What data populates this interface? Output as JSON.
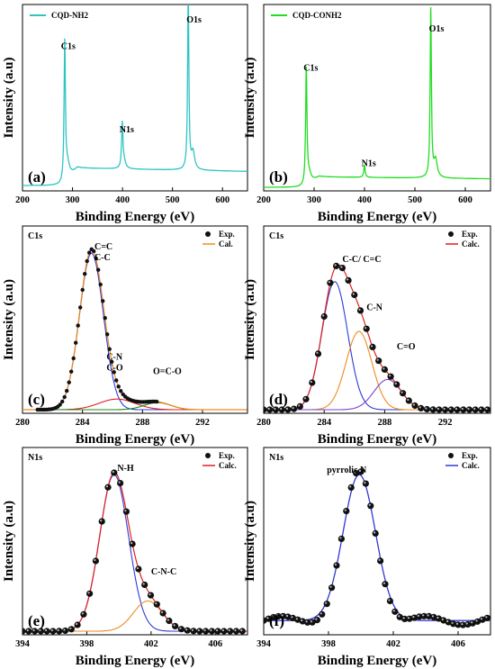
{
  "chart_data": [
    {
      "id": "a",
      "type": "line",
      "panel_label": "(a)",
      "xlabel": "Binding Energy (eV)",
      "ylabel": "Intensity (a.u)",
      "xlim": [
        200,
        650
      ],
      "xticks": [
        200,
        300,
        400,
        500,
        600
      ],
      "legend": [
        {
          "name": "CQD-NH2",
          "color": "#2ec4c4",
          "style": "line"
        }
      ],
      "legend_position": "top-left",
      "series": [
        {
          "name": "CQD-NH2",
          "color": "#2ec4c4",
          "kind": "survey",
          "baseline": 0.03,
          "ramp": 0.1,
          "peaks": [
            [
              284.5,
              0.78,
              1.6
            ],
            [
              290,
              0.08,
              5
            ],
            [
              399.5,
              0.25,
              1.6
            ],
            [
              403,
              0.04,
              4
            ],
            [
              531.5,
              1.0,
              1.5
            ],
            [
              541,
              0.1,
              4
            ]
          ]
        }
      ],
      "annotations": [
        {
          "text": "C1s",
          "x": 277,
          "y": 0.8
        },
        {
          "text": "N1s",
          "x": 394,
          "y": 0.33
        },
        {
          "text": "O1s",
          "x": 528,
          "y": 0.95
        }
      ]
    },
    {
      "id": "b",
      "type": "line",
      "panel_label": "(b)",
      "xlabel": "Binding Energy (eV)",
      "ylabel": "Intensity (a.u)",
      "xlim": [
        200,
        650
      ],
      "xticks": [
        200,
        300,
        400,
        500,
        600
      ],
      "legend": [
        {
          "name": "CQD-CONH2",
          "color": "#22dd22",
          "style": "line"
        }
      ],
      "legend_position": "top-left",
      "series": [
        {
          "name": "CQD-CONH2",
          "color": "#22dd22",
          "kind": "survey",
          "baseline": 0.02,
          "ramp": 0.06,
          "peaks": [
            [
              284.5,
              0.65,
              1.6
            ],
            [
              290,
              0.05,
              5
            ],
            [
              400,
              0.07,
              1.6
            ],
            [
              531.5,
              0.95,
              1.5
            ],
            [
              541,
              0.1,
              4
            ]
          ]
        }
      ],
      "annotations": [
        {
          "text": "C1s",
          "x": 279,
          "y": 0.68
        },
        {
          "text": "N1s",
          "x": 394,
          "y": 0.14
        },
        {
          "text": "O1s",
          "x": 528,
          "y": 0.9
        }
      ]
    },
    {
      "id": "c",
      "type": "line",
      "panel_label": "(c)",
      "title": "C1s",
      "xlabel": "Binding Energy (eV)",
      "ylabel": "Intensity (a.u)",
      "xlim": [
        280,
        295
      ],
      "xticks": [
        280,
        284,
        288,
        292
      ],
      "legend": [
        {
          "name": "Exp.",
          "style": "marker"
        },
        {
          "name": "Cal.",
          "color": "#f08a1c",
          "style": "line"
        }
      ],
      "legend_position": "top-right",
      "components": [
        {
          "color": "#2b3bd6",
          "center": 284.6,
          "height": 0.88,
          "width": 0.8
        },
        {
          "color": "#e02020",
          "center": 286.3,
          "height": 0.06,
          "width": 1.2
        },
        {
          "color": "#1a8a1a",
          "center": 289.0,
          "height": 0.04,
          "width": 0.9
        }
      ],
      "baseline": 0.02,
      "exp_points": {
        "from": 281,
        "to": 289,
        "step": 0.15
      },
      "annotations": [
        {
          "text": "C=C",
          "x": 284.8,
          "y": 0.92
        },
        {
          "text": "C-C",
          "x": 284.8,
          "y": 0.86
        },
        {
          "text": "C-N",
          "x": 285.6,
          "y": 0.3
        },
        {
          "text": "C-O",
          "x": 285.6,
          "y": 0.24
        },
        {
          "text": "O=C-O",
          "x": 288.7,
          "y": 0.22
        }
      ]
    },
    {
      "id": "d",
      "type": "line",
      "panel_label": "(d)",
      "title": "C1s",
      "xlabel": "Binding Energy (eV)",
      "ylabel": "Intensity (a.u)",
      "xlim": [
        280,
        295
      ],
      "xticks": [
        280,
        284,
        288,
        292
      ],
      "legend": [
        {
          "name": "Exp.",
          "style": "marker"
        },
        {
          "name": "Calc.",
          "color": "#e02020",
          "style": "line"
        }
      ],
      "legend_position": "top-right",
      "components": [
        {
          "color": "#2b3bd6",
          "center": 284.7,
          "height": 0.72,
          "width": 0.85
        },
        {
          "color": "#f08a1c",
          "center": 286.3,
          "height": 0.44,
          "width": 0.85
        },
        {
          "color": "#7a3fd0",
          "center": 288.2,
          "height": 0.17,
          "width": 0.9
        }
      ],
      "baseline": 0.02,
      "exp_points": {
        "from": 280,
        "to": 295,
        "step": 0.4
      },
      "annotations": [
        {
          "text": "C-C/ C=C",
          "x": 285.2,
          "y": 0.85
        },
        {
          "text": "C-N",
          "x": 286.8,
          "y": 0.58
        },
        {
          "text": "C=O",
          "x": 288.8,
          "y": 0.36
        }
      ]
    },
    {
      "id": "e",
      "type": "line",
      "panel_label": "(e)",
      "title": "N1s",
      "xlabel": "Binding Energy (eV)",
      "ylabel": "Intensity (a.u)",
      "xlim": [
        394,
        408
      ],
      "xticks": [
        394,
        398,
        402,
        406
      ],
      "legend": [
        {
          "name": "Exp.",
          "style": "marker"
        },
        {
          "name": "Calc.",
          "color": "#e02020",
          "style": "line"
        }
      ],
      "legend_position": "top-right",
      "components": [
        {
          "color": "#2b3bd6",
          "center": 399.7,
          "height": 0.88,
          "width": 0.9
        },
        {
          "color": "#f08a1c",
          "center": 401.8,
          "height": 0.17,
          "width": 0.9
        }
      ],
      "baseline": 0.02,
      "exp_points": {
        "from": 394,
        "to": 408,
        "step": 0.38
      },
      "annotations": [
        {
          "text": "N-H",
          "x": 399.9,
          "y": 0.92
        },
        {
          "text": "C-N-C",
          "x": 402.0,
          "y": 0.34
        }
      ]
    },
    {
      "id": "f",
      "type": "line",
      "panel_label": "(f)",
      "title": "N1s",
      "xlabel": "Binding Energy (eV)",
      "ylabel": "Intensity (a.u)",
      "xlim": [
        394,
        408
      ],
      "xticks": [
        394,
        398,
        402,
        406
      ],
      "legend": [
        {
          "name": "Exp.",
          "style": "marker"
        },
        {
          "name": "Calc.",
          "color": "#2b3bd6",
          "style": "line"
        }
      ],
      "legend_position": "top-right",
      "components": [
        {
          "color": "#7a3fd0",
          "center": 399.9,
          "height": 0.82,
          "width": 1.0
        }
      ],
      "baseline": 0.08,
      "exp_points": {
        "from": 394,
        "to": 408,
        "step": 0.3
      },
      "annotations": [
        {
          "text": "pyrrolic N",
          "x": 397.9,
          "y": 0.91
        }
      ]
    }
  ]
}
